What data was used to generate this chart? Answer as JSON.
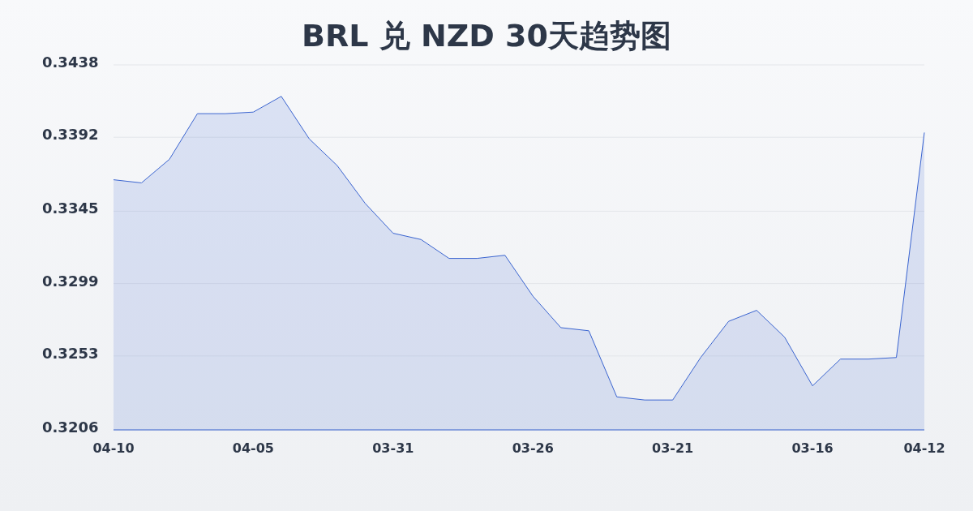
{
  "chart_data": {
    "type": "area",
    "title": "BRL 兑 NZD 30天趋势图",
    "categories": [
      "04-10",
      null,
      null,
      null,
      null,
      "04-05",
      null,
      null,
      null,
      null,
      "03-31",
      null,
      null,
      null,
      null,
      "03-26",
      null,
      null,
      null,
      null,
      "03-21",
      null,
      null,
      null,
      null,
      "03-16",
      null,
      null,
      null,
      "04-12"
    ],
    "series": [
      {
        "color": "#3a64d0",
        "values": [
          0.3365,
          0.3363,
          0.3378,
          0.3407,
          0.3407,
          0.3408,
          0.3418,
          0.3391,
          0.3374,
          0.335,
          0.3331,
          0.3327,
          0.3315,
          0.3315,
          0.3317,
          0.3291,
          0.3271,
          0.3269,
          0.3227,
          0.3225,
          0.3225,
          0.3252,
          0.3275,
          0.3282,
          0.3265,
          0.3234,
          0.3251,
          0.3251,
          0.3252,
          0.3395
        ]
      }
    ],
    "ylim": [
      0.3206,
      0.3438
    ],
    "yticks": [
      0.3206,
      0.3253,
      0.3299,
      0.3345,
      0.3392,
      0.3438
    ],
    "grid": "y"
  }
}
